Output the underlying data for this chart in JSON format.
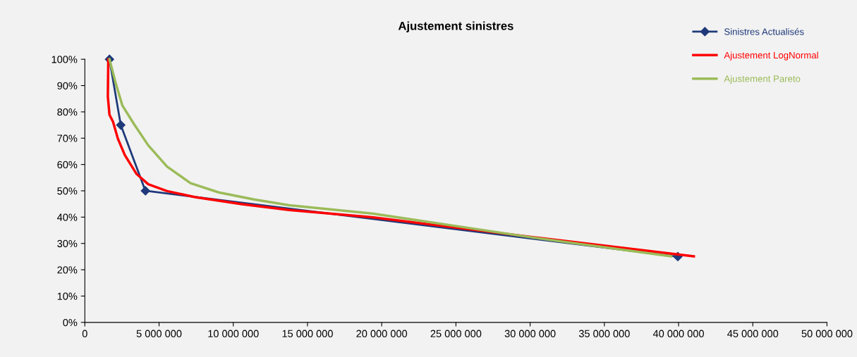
{
  "chart_data": {
    "type": "line",
    "title": "Ajustement sinistres",
    "series": [
      {
        "name": "Sinistres Actualisés",
        "color": "#1f3a7a",
        "marker": "diamond",
        "x": [
          1660000,
          2420000,
          4080000,
          39950000
        ],
        "values": [
          100,
          75,
          50,
          25
        ]
      },
      {
        "name": "Ajustement LogNormal",
        "color": "#ff0000",
        "marker": "none",
        "x": [
          1580000,
          1550000,
          1660000,
          1900000,
          2220000,
          2690000,
          3470000,
          4270000,
          5540000,
          7440000,
          10590000,
          13770000,
          19450000,
          30340000,
          41030000
        ],
        "values": [
          100,
          85.8,
          78.9,
          76.2,
          69.9,
          63.6,
          56.5,
          52.5,
          49.9,
          47.6,
          44.9,
          42.7,
          39.9,
          32.3,
          25.1
        ]
      },
      {
        "name": "Ajustement Pareto",
        "color": "#9bbb59",
        "marker": "none",
        "x": [
          1660000,
          2060000,
          2530000,
          3320000,
          4270000,
          5540000,
          7120000,
          9020000,
          11400000,
          13770000,
          19450000,
          30340000,
          39500000
        ],
        "values": [
          100,
          91.3,
          82.4,
          75.3,
          67.3,
          59.2,
          52.9,
          49.4,
          46.7,
          44.5,
          41.3,
          32.1,
          25.1
        ]
      }
    ],
    "xlim": [
      0,
      50000000
    ],
    "xticks": [
      0,
      {
        "value": 5000000,
        "label": "5 000 000"
      },
      {
        "value": 10000000,
        "label": "10 000 000"
      },
      {
        "value": 15000000,
        "label": "15 000 000"
      },
      {
        "value": 20000000,
        "label": "20 000 000"
      },
      {
        "value": 25000000,
        "label": "25 000 000"
      },
      {
        "value": 30000000,
        "label": "30 000 000"
      },
      {
        "value": 35000000,
        "label": "35 000 000"
      },
      {
        "value": 40000000,
        "label": "40 000 000"
      },
      {
        "value": 45000000,
        "label": "45 000 000"
      },
      {
        "value": 50000000,
        "label": "50 000 000"
      }
    ],
    "ylim": [
      0,
      100
    ],
    "yticks": [
      {
        "value": 0,
        "label": "0%"
      },
      {
        "value": 10,
        "label": "10%"
      },
      {
        "value": 20,
        "label": "20%"
      },
      {
        "value": 30,
        "label": "30%"
      },
      {
        "value": 40,
        "label": "40%"
      },
      {
        "value": 50,
        "label": "50%"
      },
      {
        "value": 60,
        "label": "60%"
      },
      {
        "value": 70,
        "label": "70%"
      },
      {
        "value": 80,
        "label": "80%"
      },
      {
        "value": 90,
        "label": "90%"
      },
      {
        "value": 100,
        "label": "100%"
      }
    ],
    "grid": false,
    "legend": "top right"
  }
}
